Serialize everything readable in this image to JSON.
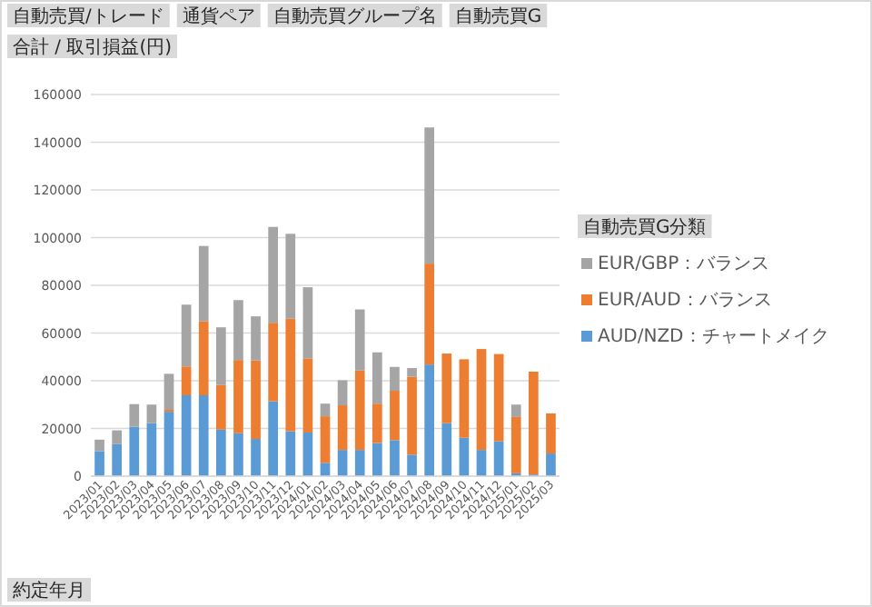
{
  "chart_data": {
    "type": "bar",
    "stacked": true,
    "annotations": [
      "自動売買/トレード",
      "通貨ペア",
      "自動売買グループ名",
      "自動売買G"
    ],
    "ylabel": "合計 / 取引損益(円)",
    "xlabel": "約定年月",
    "legend_title": "自動売買G分類",
    "categories": [
      "2023/01",
      "2023/02",
      "2023/03",
      "2023/04",
      "2023/05",
      "2023/06",
      "2023/07",
      "2023/08",
      "2023/09",
      "2023/10",
      "2023/11",
      "2023/12",
      "2024/01",
      "2024/02",
      "2024/03",
      "2024/04",
      "2024/05",
      "2024/06",
      "2024/07",
      "2024/08",
      "2024/09",
      "2024/10",
      "2024/11",
      "2024/12",
      "2025/01",
      "2025/02",
      "2025/03"
    ],
    "series": [
      {
        "name": "AUD/NZD：チャートメイク",
        "color": "#5b9bd5",
        "values": [
          10500,
          13400,
          20700,
          22200,
          27000,
          33900,
          33900,
          19500,
          18000,
          15600,
          31400,
          18800,
          18300,
          5600,
          11000,
          11000,
          13900,
          15100,
          9000,
          46800,
          22200,
          16100,
          11000,
          14600,
          1200,
          700,
          9500
        ]
      },
      {
        "name": "EUR/AUD：バランス",
        "color": "#ed7d31",
        "values": [
          null,
          null,
          null,
          null,
          800,
          12100,
          31100,
          18700,
          30700,
          32900,
          32900,
          47200,
          31100,
          19500,
          18700,
          33300,
          16500,
          20700,
          32700,
          42300,
          29200,
          32900,
          42300,
          36600,
          23600,
          43100,
          16800
        ]
      },
      {
        "name": "EUR/GBP：バランス",
        "color": "#a5a5a5",
        "values": [
          4800,
          5800,
          9500,
          7800,
          15100,
          25900,
          31500,
          24200,
          25100,
          18500,
          40200,
          35600,
          29800,
          5300,
          10500,
          25600,
          21500,
          10000,
          3600,
          57100,
          null,
          null,
          null,
          null,
          5200,
          null,
          null
        ]
      }
    ],
    "ylim": [
      0,
      160000
    ],
    "yticks": [
      0,
      20000,
      40000,
      60000,
      80000,
      100000,
      120000,
      140000,
      160000
    ],
    "grid": "y",
    "legend": "right"
  }
}
